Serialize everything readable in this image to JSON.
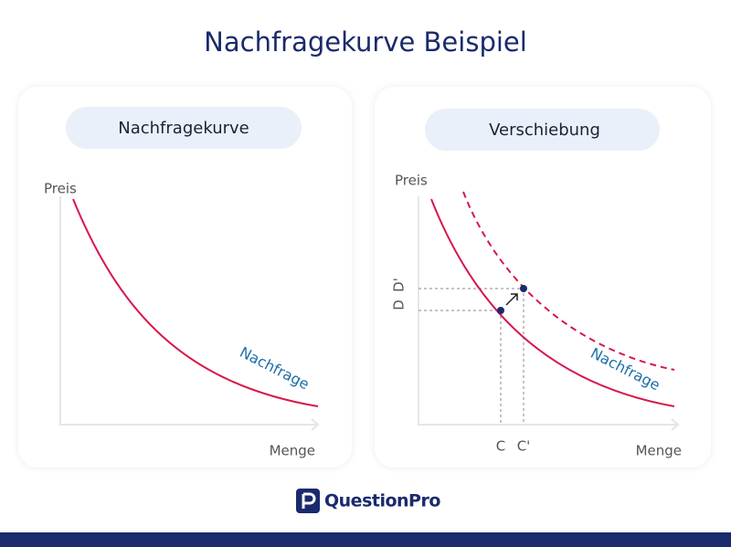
{
  "header": {
    "title": "Nachfragekurve Beispiel"
  },
  "panels": [
    {
      "heading": "Nachfragekurve",
      "y_axis": "Preis",
      "x_axis": "Menge",
      "curve_label": "Nachfrage"
    },
    {
      "heading": "Verschiebung",
      "y_axis": "Preis",
      "x_axis": "Menge",
      "curve_label": "Nachfrage",
      "y_markers": [
        "D",
        "D'"
      ],
      "x_markers": [
        "C",
        "C'"
      ]
    }
  ],
  "footer": {
    "logo": "QuestionPro"
  }
}
